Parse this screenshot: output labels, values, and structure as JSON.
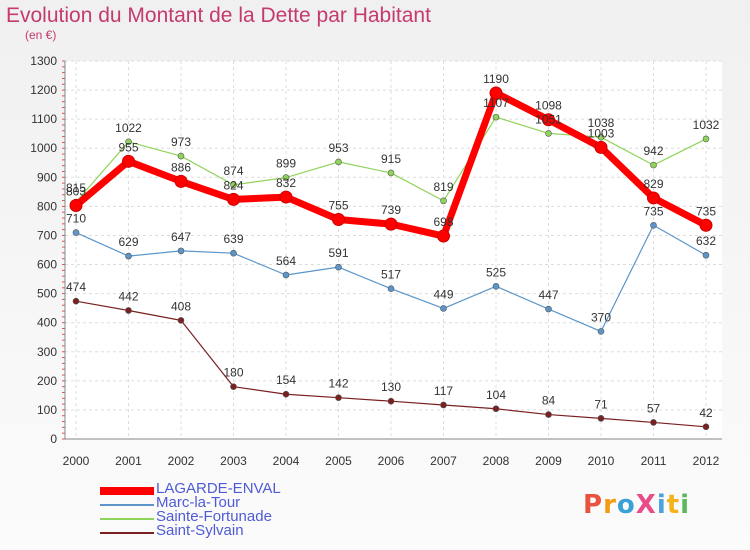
{
  "chart_data": {
    "type": "line",
    "title": "Evolution du Montant de la Dette par Habitant",
    "subtitle": "(en €)",
    "x": [
      "2000",
      "2001",
      "2002",
      "2003",
      "2004",
      "2005",
      "2006",
      "2007",
      "2008",
      "2009",
      "2010",
      "2011",
      "2012"
    ],
    "ylim": [
      0,
      1300
    ],
    "yticks": [
      0,
      100,
      200,
      300,
      400,
      500,
      600,
      700,
      800,
      900,
      1000,
      1100,
      1200,
      1300
    ],
    "grid": true,
    "legend": "bottom-left",
    "series": [
      {
        "name": "Sainte-Fortunade",
        "color": "#8fd45a",
        "width": 1.2,
        "values": [
          815,
          1022,
          973,
          874,
          899,
          953,
          915,
          819,
          1107,
          1051,
          1038,
          942,
          1032
        ]
      },
      {
        "name": "Marc-la-Tour",
        "color": "#5b95c9",
        "width": 1.2,
        "values": [
          710,
          629,
          647,
          639,
          564,
          591,
          517,
          449,
          525,
          447,
          370,
          735,
          632
        ]
      },
      {
        "name": "Saint-Sylvain",
        "color": "#7a2020",
        "width": 1.2,
        "values": [
          474,
          442,
          408,
          180,
          154,
          142,
          130,
          117,
          104,
          84,
          71,
          57,
          42
        ]
      },
      {
        "name": "LAGARDE-ENVAL",
        "color": "#ff0000",
        "width": 7,
        "values": [
          803,
          955,
          886,
          824,
          832,
          755,
          739,
          698,
          1190,
          1098,
          1003,
          829,
          735
        ]
      }
    ],
    "legend_order": [
      "LAGARDE-ENVAL",
      "Marc-la-Tour",
      "Sainte-Fortunade",
      "Saint-Sylvain"
    ]
  },
  "logo": {
    "text": "ProXiti",
    "colors": [
      "#e9533e",
      "#f39c12",
      "#3aa0d8",
      "#ea4c89",
      "#4aa3df",
      "#f6b21b",
      "#5cb85c"
    ]
  }
}
